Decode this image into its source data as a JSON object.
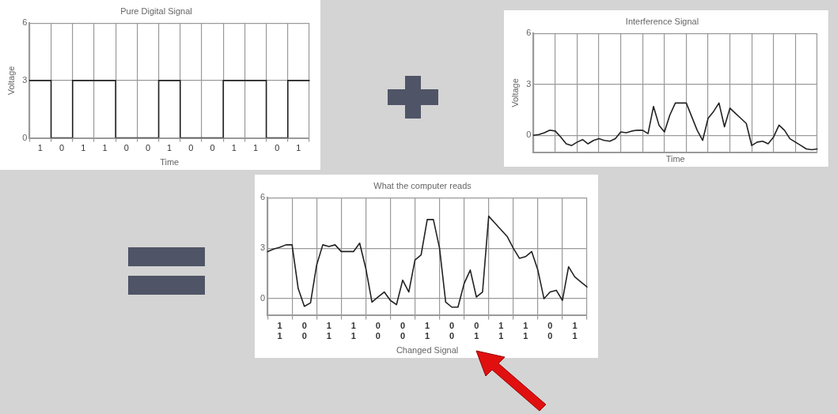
{
  "chart_data": [
    {
      "type": "step",
      "title": "Pure Digital Signal",
      "xlabel": "Time",
      "ylabel": "Voltage",
      "grid": true,
      "ylim": [
        0,
        6
      ],
      "yticks": [
        0,
        3,
        6
      ],
      "categories": [
        null,
        "1",
        null,
        "0",
        null,
        "1",
        null,
        "1",
        null,
        "0",
        null,
        "0",
        null,
        "1",
        null,
        "0",
        null,
        "0",
        null,
        "1",
        null,
        "1",
        null,
        "0",
        null,
        "1",
        null
      ],
      "series": [
        {
          "color": "#222222",
          "values": [
            3,
            3,
            0,
            0,
            3,
            3,
            3,
            3,
            0,
            0,
            0,
            0,
            3,
            3,
            0,
            0,
            0,
            0,
            3,
            3,
            3,
            3,
            0,
            0,
            3,
            3,
            3
          ]
        }
      ]
    },
    {
      "type": "line",
      "title": "Interference Signal",
      "xlabel": "Time",
      "ylabel": "Voltage",
      "grid": true,
      "tick_labels": "y",
      "ylim": [
        -1,
        6
      ],
      "yticks": [
        0,
        3,
        6
      ],
      "categories": [
        null,
        null,
        null,
        null,
        null,
        null,
        null,
        null,
        null,
        null,
        null,
        null,
        null,
        null,
        null,
        null,
        null,
        null,
        null,
        null,
        null,
        null,
        null,
        null,
        null,
        null,
        null,
        null,
        null,
        null,
        null,
        null,
        null,
        null,
        null,
        null,
        null,
        null,
        null,
        null,
        null,
        null,
        null,
        null,
        null,
        null,
        null,
        null,
        null,
        null,
        null,
        null,
        null
      ],
      "series": [
        {
          "color": "#222222",
          "values": [
            0,
            0.05,
            0.15,
            0.3,
            0.25,
            -0.1,
            -0.5,
            -0.6,
            -0.4,
            -0.25,
            -0.5,
            -0.3,
            -0.2,
            -0.3,
            -0.35,
            -0.2,
            0.2,
            0.15,
            0.25,
            0.3,
            0.3,
            0.1,
            1.7,
            0.6,
            0.2,
            1.2,
            1.9,
            1.9,
            1.9,
            1.1,
            0.3,
            -0.3,
            1.0,
            1.4,
            1.9,
            0.5,
            1.6,
            1.3,
            1.0,
            0.7,
            -0.6,
            -0.4,
            -0.35,
            -0.5,
            -0.1,
            0.6,
            0.3,
            -0.2,
            -0.4,
            -0.6,
            -0.8,
            -0.85,
            -0.8
          ]
        }
      ]
    },
    {
      "type": "line",
      "title": "What the computer reads",
      "xlabel": "Changed Signal",
      "grid": true,
      "ylim": [
        -1,
        6
      ],
      "yticks": [
        0,
        3,
        6
      ],
      "categories": [
        null,
        null,
        "1\n1",
        null,
        null,
        null,
        "0\n0",
        null,
        null,
        null,
        "1\n1",
        null,
        null,
        null,
        "1\n1",
        null,
        null,
        null,
        "0\n0",
        null,
        null,
        null,
        "0\n0",
        null,
        null,
        null,
        "1\n1",
        null,
        null,
        null,
        "0\n0",
        null,
        null,
        null,
        "0\n1",
        null,
        null,
        null,
        "1\n1",
        null,
        null,
        null,
        "1\n1",
        null,
        null,
        null,
        "0\n0",
        null,
        null,
        null,
        "1\n1",
        null,
        null
      ],
      "series": [
        {
          "color": "#222222",
          "values": [
            2.8,
            2.95,
            3.05,
            3.2,
            3.2,
            0.6,
            -0.45,
            -0.25,
            2.0,
            3.2,
            3.1,
            3.2,
            2.8,
            2.8,
            2.8,
            3.3,
            1.8,
            -0.2,
            0.1,
            0.4,
            -0.1,
            -0.35,
            1.1,
            0.4,
            2.3,
            2.6,
            4.7,
            4.7,
            3.0,
            -0.2,
            -0.5,
            -0.5,
            0.9,
            1.7,
            0.1,
            0.4,
            4.9,
            4.5,
            4.1,
            3.7,
            3.0,
            2.4,
            2.5,
            2.8,
            1.7,
            0.0,
            0.4,
            0.5,
            -0.1,
            1.9,
            1.3,
            1.0,
            0.7
          ]
        }
      ]
    }
  ]
}
